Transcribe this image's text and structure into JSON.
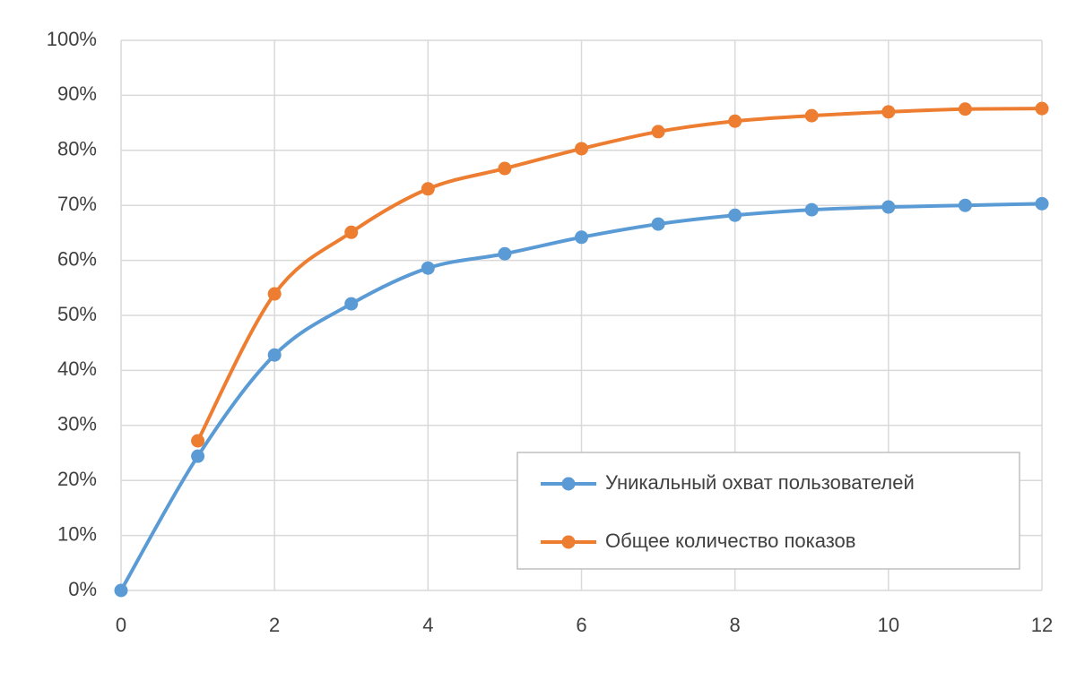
{
  "chart_data": {
    "type": "line",
    "x": [
      0,
      1,
      2,
      3,
      4,
      5,
      6,
      7,
      8,
      9,
      10,
      11,
      12
    ],
    "series": [
      {
        "name": "Уникальный охват пользователей",
        "color": "#5b9bd5",
        "values": [
          0,
          24.4,
          42.8,
          52.1,
          58.6,
          61.2,
          64.2,
          66.6,
          68.2,
          69.2,
          69.7,
          70.0,
          70.3
        ]
      },
      {
        "name": "Общее количество показов",
        "color": "#ed7d31",
        "values": [
          null,
          27.2,
          53.9,
          65.1,
          73.0,
          76.7,
          80.3,
          83.4,
          85.3,
          86.3,
          87.0,
          87.5,
          87.6
        ]
      }
    ],
    "xlim": [
      0,
      12
    ],
    "xticks": [
      0,
      2,
      4,
      6,
      8,
      10,
      12
    ],
    "ylim": [
      0,
      100
    ],
    "yticks": [
      {
        "value": 0,
        "label": "0%"
      },
      {
        "value": 10,
        "label": "10%"
      },
      {
        "value": 20,
        "label": "20%"
      },
      {
        "value": 30,
        "label": "30%"
      },
      {
        "value": 40,
        "label": "40%"
      },
      {
        "value": 50,
        "label": "50%"
      },
      {
        "value": 60,
        "label": "60%"
      },
      {
        "value": 70,
        "label": "70%"
      },
      {
        "value": 80,
        "label": "80%"
      },
      {
        "value": 90,
        "label": "90%"
      },
      {
        "value": 100,
        "label": "100%"
      }
    ],
    "grid": true,
    "smooth": true,
    "legend": "lower right"
  }
}
